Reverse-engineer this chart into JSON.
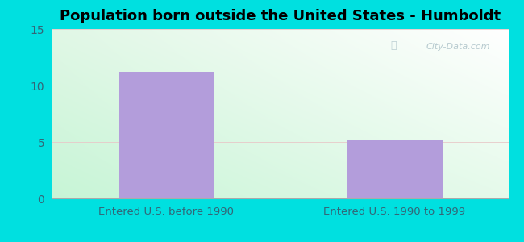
{
  "title": "Population born outside the United States - Humboldt",
  "categories": [
    "Entered U.S. before 1990",
    "Entered U.S. 1990 to 1999"
  ],
  "values": [
    11.2,
    5.2
  ],
  "bar_color": "#b39ddb",
  "ylim": [
    0,
    15
  ],
  "yticks": [
    0,
    5,
    10,
    15
  ],
  "outer_bg": "#00e0e0",
  "plot_bg_top_left": "#c8f0d8",
  "plot_bg_top_right": "#ffffff",
  "plot_bg_bottom_left": "#c8f0d8",
  "plot_bg_bottom_right": "#e8f8ee",
  "title_fontsize": 13,
  "tick_fontsize": 10,
  "label_fontsize": 9.5,
  "watermark": "City-Data.com",
  "grid_color": "#dddddd",
  "tick_color": "#336677",
  "label_color": "#336677"
}
